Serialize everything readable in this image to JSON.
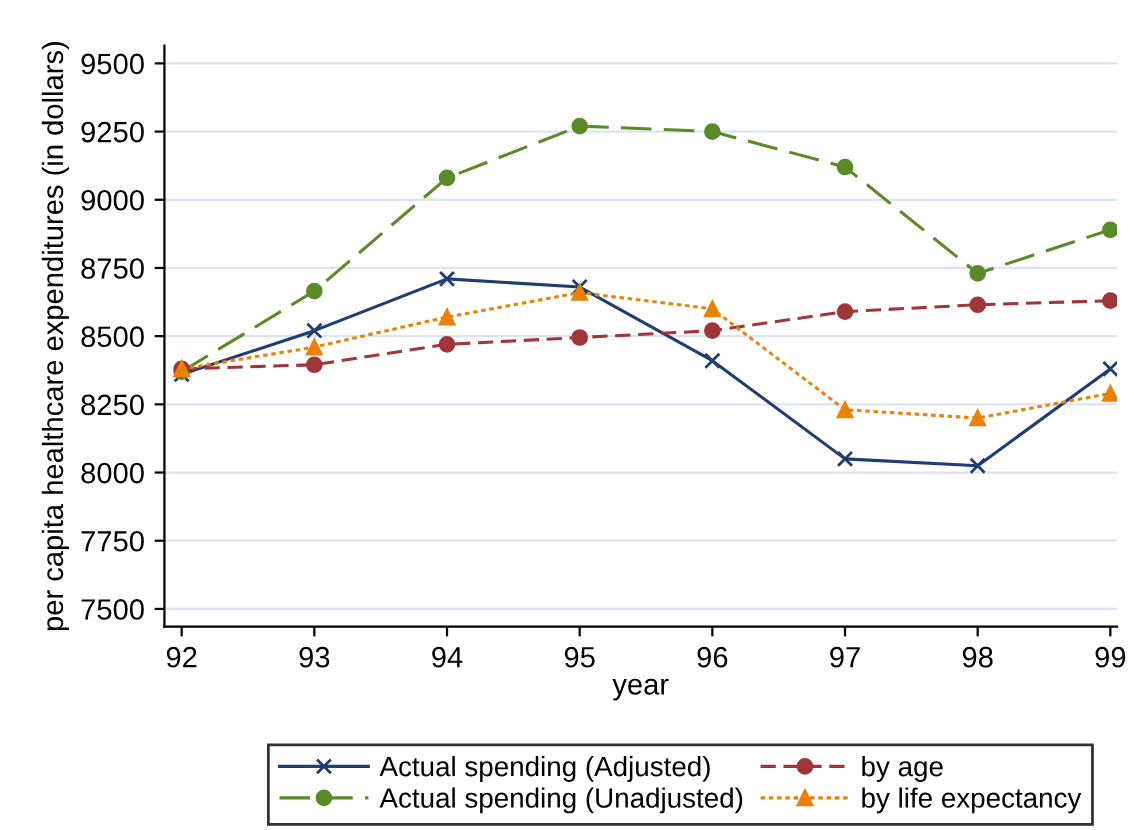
{
  "chart_data": {
    "type": "line",
    "xlabel": "year",
    "ylabel": "per capita healthcare expenditures (in dollars)",
    "x": [
      92,
      93,
      94,
      95,
      96,
      97,
      98,
      99
    ],
    "xlim": [
      91.87,
      99.05
    ],
    "xticks": [
      92,
      93,
      94,
      95,
      96,
      97,
      98,
      99
    ],
    "ylim": [
      7435,
      9565
    ],
    "yticks": [
      7500,
      7750,
      8000,
      8250,
      8500,
      8750,
      9000,
      9250,
      9500
    ],
    "grid": "y",
    "legend": "bottom",
    "series": [
      {
        "name": "Actual spending (Adjusted)",
        "color": "#1f3d73",
        "marker": "cross",
        "line_style": "solid",
        "values": [
          8360,
          8520,
          8710,
          8680,
          8410,
          8050,
          8025,
          8380
        ]
      },
      {
        "name": "Actual spending (Unadjusted)",
        "color": "#5a8a2a",
        "marker": "circle",
        "line_style": "longdash",
        "values": [
          8370,
          8665,
          9080,
          9270,
          9250,
          9120,
          8730,
          8890
        ]
      },
      {
        "name": "by age",
        "color": "#a0353a",
        "marker": "circle",
        "line_style": "dashed",
        "values": [
          8380,
          8395,
          8470,
          8495,
          8520,
          8590,
          8615,
          8630
        ]
      },
      {
        "name": "by life expectancy",
        "color": "#e8820a",
        "marker": "triangle",
        "line_style": "dotted",
        "values": [
          8380,
          8460,
          8570,
          8660,
          8600,
          8230,
          8200,
          8290
        ]
      }
    ]
  }
}
